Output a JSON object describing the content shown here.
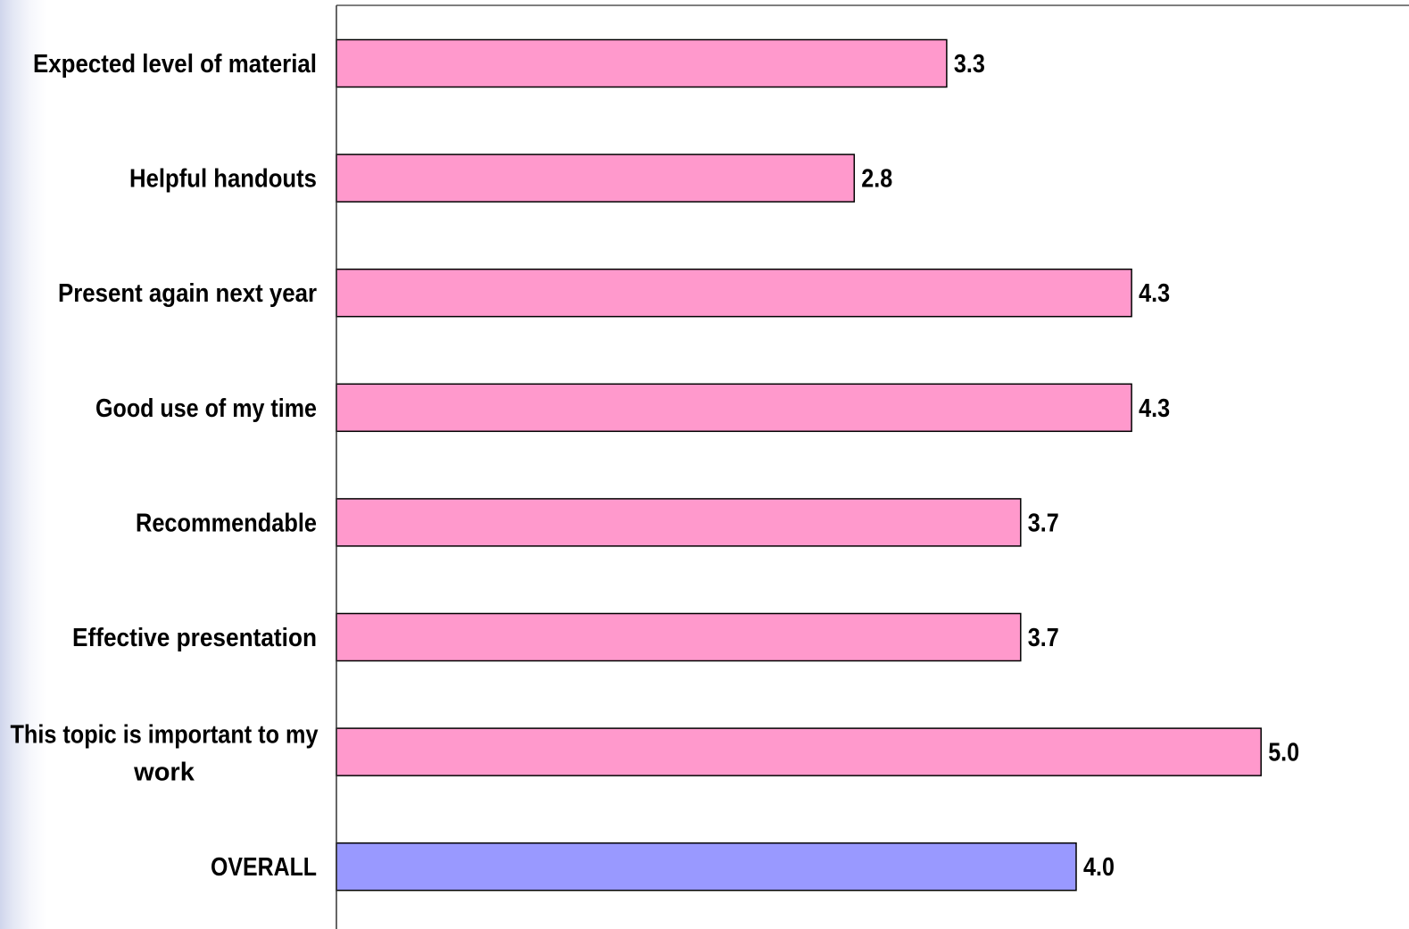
{
  "chart_data": {
    "type": "bar",
    "orientation": "horizontal",
    "categories": [
      "Expected level of material",
      "Helpful handouts",
      "Present again next year",
      "Good use of my time",
      "Recommendable",
      "Effective presentation",
      "This topic is important to my work",
      "OVERALL"
    ],
    "values": [
      3.3,
      2.8,
      4.3,
      4.3,
      3.7,
      3.7,
      5.0,
      4.0
    ],
    "value_labels": [
      "3.3",
      "2.8",
      "4.3",
      "4.3",
      "3.7",
      "3.7",
      "5.0",
      "4.0"
    ],
    "title": "",
    "xlabel": "",
    "ylabel": "",
    "xlim": [
      0,
      5.8
    ],
    "grid": false,
    "legend": "none",
    "colors": {
      "bar": "#ff99cc",
      "overall_bar": "#9999ff",
      "bar_border": "#000000"
    },
    "highlight_category": "OVERALL"
  }
}
